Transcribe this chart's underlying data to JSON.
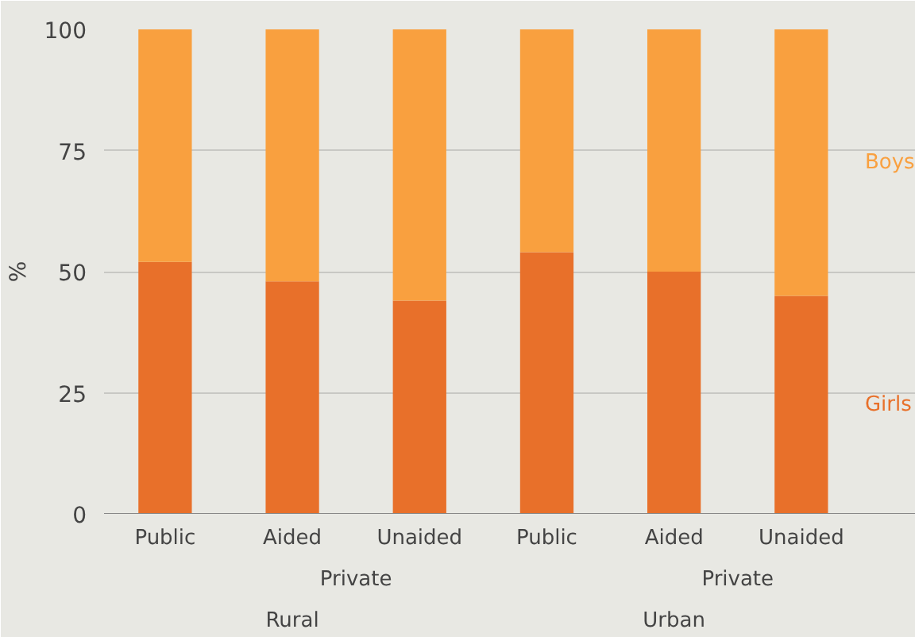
{
  "chart_data": {
    "type": "bar",
    "stacked": true,
    "ylabel": "%",
    "categories": [
      "Public",
      "Aided",
      "Unaided",
      "Public",
      "Aided",
      "Unaided"
    ],
    "series": [
      {
        "name": "Girls",
        "color": "#e8702a",
        "values": [
          52,
          48,
          44,
          54,
          50,
          45
        ]
      },
      {
        "name": "Boys",
        "color": "#f9a03f",
        "values": [
          48,
          52,
          56,
          46,
          50,
          55
        ]
      }
    ],
    "ylim": [
      0,
      100
    ],
    "yticks": [
      0,
      25,
      50,
      75,
      100
    ],
    "grid": "y",
    "legend": "right",
    "annotations": [
      "Private",
      "Private",
      "Rural",
      "Urban"
    ]
  }
}
